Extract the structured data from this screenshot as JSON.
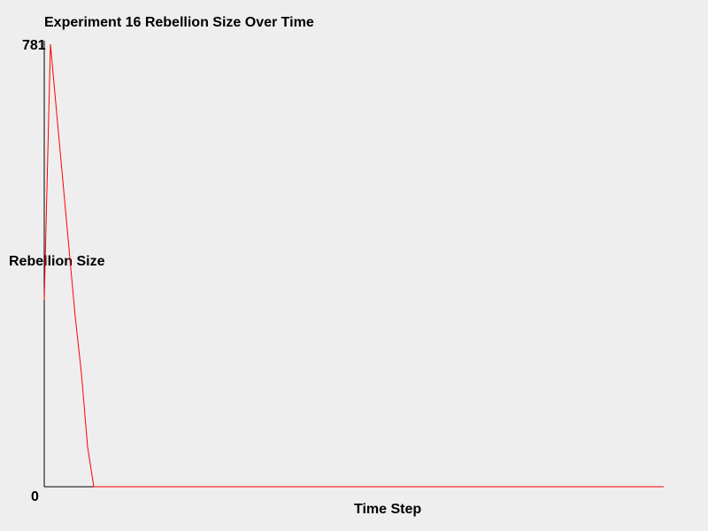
{
  "chart_data": {
    "type": "line",
    "title": "Experiment 16 Rebellion Size Over Time",
    "xlabel": "Time Step",
    "ylabel": "Rebellion Size",
    "ylim": [
      0,
      781
    ],
    "y_tick_labels": [
      "781",
      "0"
    ],
    "xlim": [
      0,
      100
    ],
    "grid": false,
    "series": [
      {
        "color": "#ff0000",
        "x": [
          0,
          1,
          2,
          3,
          4,
          5,
          6,
          7,
          8,
          9,
          10,
          20,
          30,
          40,
          50,
          60,
          70,
          80,
          90,
          100
        ],
        "y": [
          330,
          781,
          660,
          540,
          420,
          300,
          200,
          70,
          0,
          0,
          0,
          0,
          0,
          0,
          0,
          0,
          0,
          0,
          0,
          0
        ]
      }
    ]
  }
}
